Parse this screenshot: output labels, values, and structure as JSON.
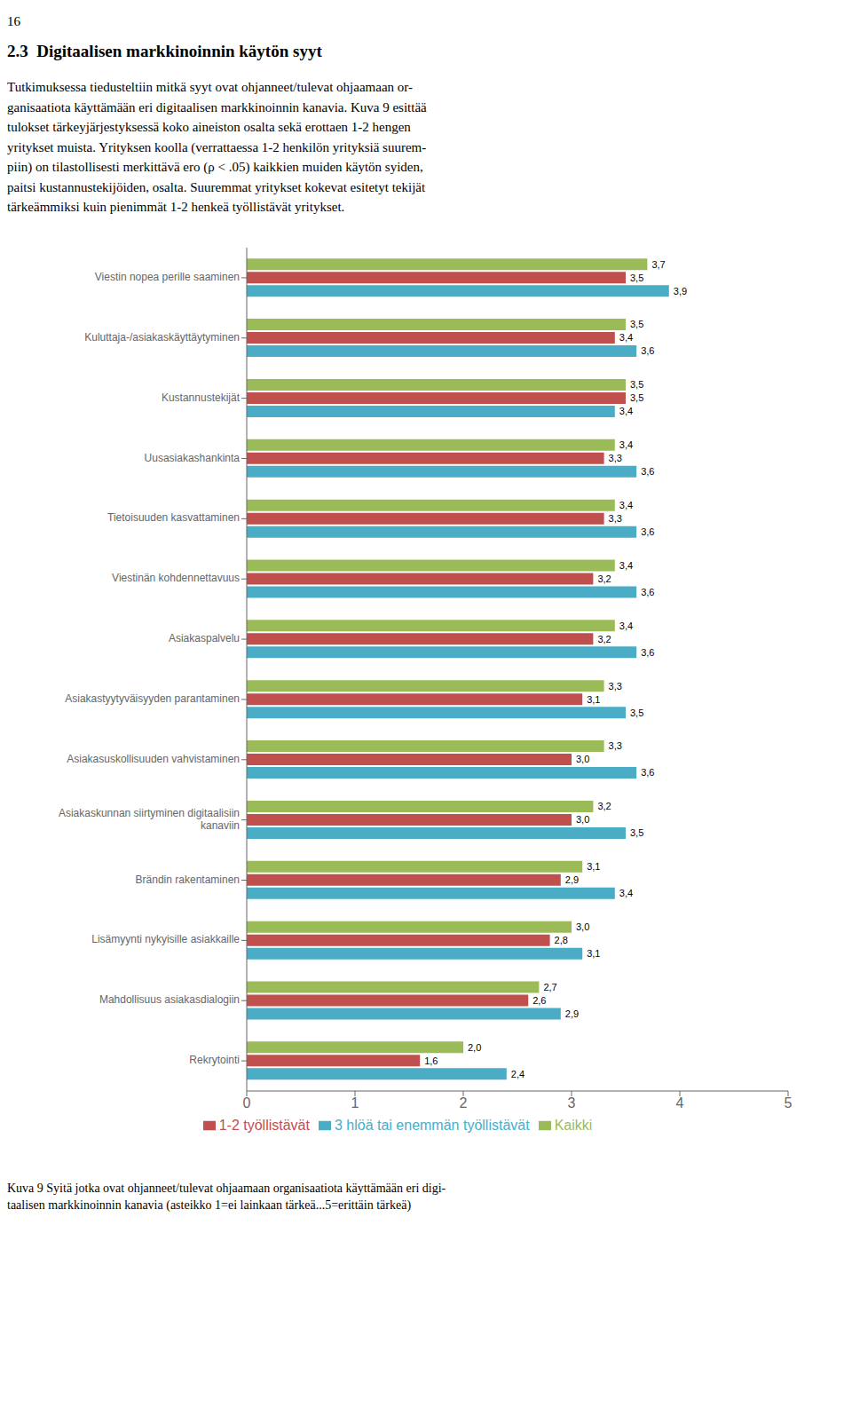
{
  "chart_data": {
    "type": "bar",
    "orientation": "horizontal",
    "annotations": [
      "16",
      "2.3  Digitaalisen markkinoinnin käytön syyt",
      "Tutkimuksessa tiedusteltiin mitkä syyt ovat ohjanneet/tulevat ohjaamaan or-\nganisaatiota käyttämään eri digitaalisen markkinoinnin kanavia. Kuva 9 esittää\ntulokset tärkeyjärjestyksessä koko aineiston osalta sekä erottaen 1-2 hengen\nyritykset muista. Yrityksen koolla (verrattaessa 1-2 henkilön yrityksiä suurem-\npiin) on tilastollisesti merkittävä ero (ρ < .05) kaikkien muiden käytön syiden,\npaitsi kustannustekijöiden, osalta. Suuremmat yritykset kokevat esitetyt tekijät\ntärkeämmiksi kuin pienimmät 1-2 henkeä työllistävät yritykset.",
      "Kuva 9 Syitä jotka ovat ohjanneet/tulevat ohjaamaan organisaatiota käyttämään eri digi-\ntaalisen markkinoinnin kanavia (asteikko 1=ei lainkaan tärkeä...5=erittäin tärkeä)"
    ],
    "categories": [
      "Viestin nopea perille saaminen",
      "Kuluttaja-/asiakaskäyttäytyminen",
      "Kustannustekijät",
      "Uusasiakashankinta",
      "Tietoisuuden kasvattaminen",
      "Viestinän kohdennettavuus",
      "Asiakaspalvelu",
      "Asiakastyytyväisyyden parantaminen",
      "Asiakasuskollisuuden vahvistaminen",
      "Asiakaskunnan siirtyminen digitaalisiin\nkanaviin",
      "Brändin rakentaminen",
      "Lisämyynti nykyisille asiakkaille",
      "Mahdollisuus asiakasdialogiin",
      "Rekrytointi"
    ],
    "series": [
      {
        "name": "Kaikki",
        "color": "#9BBB59",
        "values": [
          3.7,
          3.5,
          3.5,
          3.4,
          3.4,
          3.4,
          3.4,
          3.3,
          3.3,
          3.2,
          3.1,
          3.0,
          2.7,
          2.0
        ],
        "value_labels": [
          "3,7",
          "3,5",
          "3,5",
          "3,4",
          "3,4",
          "3,4",
          "3,4",
          "3,3",
          "3,3",
          "3,2",
          "3,1",
          "3,0",
          "2,7",
          "2,0"
        ]
      },
      {
        "name": "1-2 työllistävät",
        "color": "#C0504D",
        "values": [
          3.5,
          3.4,
          3.5,
          3.3,
          3.3,
          3.2,
          3.2,
          3.1,
          3.0,
          3.0,
          2.9,
          2.8,
          2.6,
          1.6
        ],
        "value_labels": [
          "3,5",
          "3,4",
          "3,5",
          "3,3",
          "3,3",
          "3,2",
          "3,2",
          "3,1",
          "3,0",
          "3,0",
          "2,9",
          "2,8",
          "2,6",
          "1,6"
        ]
      },
      {
        "name": "3 hlöä tai enemmän työllistävät",
        "color": "#4BACC6",
        "values": [
          3.9,
          3.6,
          3.4,
          3.6,
          3.6,
          3.6,
          3.6,
          3.5,
          3.6,
          3.5,
          3.4,
          3.1,
          2.9,
          2.4
        ],
        "value_labels": [
          "3,9",
          "3,6",
          "3,4",
          "3,6",
          "3,6",
          "3,6",
          "3,6",
          "3,5",
          "3,6",
          "3,5",
          "3,4",
          "3,1",
          "2,9",
          "2,4"
        ]
      }
    ],
    "xlim": [
      0,
      5
    ],
    "xticks": [
      0,
      1,
      2,
      3,
      4,
      5
    ],
    "data_labels": true,
    "grid": false,
    "legend": "bottom"
  }
}
